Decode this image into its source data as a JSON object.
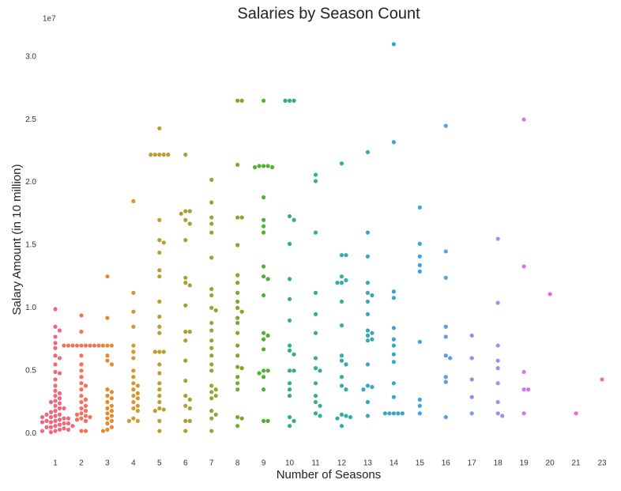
{
  "chart_data": {
    "type": "swarm",
    "title": "Salaries by Season Count",
    "x_label": "Number of Seasons",
    "y_label": "Salary Amount (in 10 million)",
    "y_offset_label": "1e7",
    "categories": [
      "1",
      "2",
      "3",
      "4",
      "5",
      "6",
      "7",
      "8",
      "9",
      "10",
      "11",
      "12",
      "13",
      "14",
      "15",
      "16",
      "17",
      "18",
      "19",
      "20",
      "21",
      "23"
    ],
    "colors": [
      "#f0677d",
      "#f3705a",
      "#e68a2f",
      "#d19a31",
      "#bb9d32",
      "#a9a031",
      "#97a431",
      "#7ca831",
      "#50b131",
      "#33b07a",
      "#35ad97",
      "#36aba8",
      "#37a8b8",
      "#38a6c6",
      "#3ba3ec",
      "#5a9de8",
      "#8295f4",
      "#a48cf4",
      "#cc7af4",
      "#f45fe0",
      "#f565cc",
      "#f66bad"
    ],
    "values": [
      [
        0.99,
        0.85,
        0.82,
        0.77,
        0.72,
        0.68,
        0.62,
        0.6,
        0.55,
        0.49,
        0.48,
        0.43,
        0.38,
        0.34,
        0.32,
        0.3,
        0.28,
        0.26,
        0.24,
        0.22,
        0.2,
        0.18,
        0.17,
        0.15,
        0.14,
        0.13,
        0.12,
        0.11,
        0.1,
        0.09,
        0.08,
        0.07,
        0.06,
        0.05,
        0.04,
        0.03,
        0.02,
        0.01,
        0.15,
        0.12,
        0.1,
        0.08,
        0.05,
        0.03,
        0.02,
        0.2,
        0.25,
        0.13,
        0.09,
        0.06
      ],
      [
        0.94,
        0.81,
        0.7,
        0.7,
        0.7,
        0.7,
        0.7,
        0.7,
        0.7,
        0.7,
        0.7,
        0.62,
        0.55,
        0.5,
        0.45,
        0.4,
        0.38,
        0.35,
        0.3,
        0.27,
        0.25,
        0.22,
        0.2,
        0.18,
        0.16,
        0.15,
        0.14,
        0.13,
        0.12,
        0.11,
        0.1,
        0.02,
        0.02
      ],
      [
        1.25,
        0.92,
        0.7,
        0.7,
        0.7,
        0.62,
        0.58,
        0.55,
        0.35,
        0.33,
        0.3,
        0.28,
        0.25,
        0.22,
        0.2,
        0.18,
        0.16,
        0.14,
        0.12,
        0.1,
        0.08,
        0.05,
        0.03,
        0.02
      ],
      [
        1.85,
        1.12,
        0.97,
        0.85,
        0.7,
        0.65,
        0.6,
        0.5,
        0.45,
        0.4,
        0.38,
        0.35,
        0.32,
        0.3,
        0.28,
        0.25,
        0.22,
        0.2,
        0.18,
        0.12,
        0.1,
        0.1
      ],
      [
        2.43,
        2.22,
        2.22,
        2.22,
        2.22,
        2.22,
        1.7,
        1.54,
        1.52,
        1.44,
        1.3,
        1.25,
        1.05,
        0.93,
        0.85,
        0.8,
        0.65,
        0.65,
        0.65,
        0.55,
        0.48,
        0.4,
        0.35,
        0.3,
        0.25,
        0.2,
        0.19,
        0.18,
        0.1,
        0.02
      ],
      [
        2.22,
        1.77,
        1.77,
        1.75,
        1.7,
        1.67,
        1.54,
        1.24,
        1.2,
        1.18,
        1.02,
        0.81,
        0.81,
        0.74,
        0.58,
        0.42,
        0.3,
        0.27,
        0.22,
        0.2,
        0.1,
        0.1,
        0.02
      ],
      [
        2.02,
        1.84,
        1.72,
        1.67,
        1.6,
        1.4,
        1.15,
        1.1,
        1.0,
        0.98,
        0.88,
        0.82,
        0.74,
        0.68,
        0.62,
        0.55,
        0.5,
        0.38,
        0.35,
        0.33,
        0.3,
        0.28,
        0.18,
        0.15,
        0.12,
        0.02
      ],
      [
        2.65,
        2.65,
        2.14,
        1.72,
        1.72,
        1.5,
        1.26,
        1.2,
        1.12,
        1.05,
        1.0,
        0.97,
        0.92,
        0.88,
        0.8,
        0.7,
        0.62,
        0.53,
        0.52,
        0.45,
        0.4,
        0.35,
        0.13,
        0.12,
        0.06
      ],
      [
        2.65,
        2.13,
        2.13,
        2.13,
        2.12,
        2.12,
        1.88,
        1.7,
        1.65,
        1.6,
        1.33,
        1.25,
        1.23,
        1.1,
        0.8,
        0.78,
        0.75,
        0.67,
        0.5,
        0.5,
        0.48,
        0.45,
        0.35,
        0.1,
        0.1
      ],
      [
        2.65,
        2.65,
        2.65,
        1.73,
        1.7,
        1.51,
        1.23,
        1.07,
        0.9,
        0.7,
        0.66,
        0.63,
        0.5,
        0.5,
        0.4,
        0.35,
        0.3,
        0.13,
        0.1,
        0.06
      ],
      [
        2.06,
        2.01,
        1.6,
        1.12,
        0.95,
        0.8,
        0.6,
        0.52,
        0.5,
        0.4,
        0.3,
        0.25,
        0.22,
        0.16,
        0.14
      ],
      [
        2.15,
        1.42,
        1.42,
        1.25,
        1.22,
        1.2,
        1.2,
        1.05,
        0.86,
        0.62,
        0.58,
        0.55,
        0.45,
        0.38,
        0.35,
        0.15,
        0.14,
        0.12,
        0.13,
        0.06
      ],
      [
        2.24,
        1.6,
        1.41,
        1.2,
        1.12,
        1.1,
        1.05,
        0.95,
        0.82,
        0.8,
        0.78,
        0.75,
        0.74,
        0.55,
        0.38,
        0.37,
        0.35,
        0.25,
        0.14
      ],
      [
        3.1,
        2.32,
        1.13,
        1.08,
        0.84,
        0.75,
        0.7,
        0.63,
        0.57,
        0.4,
        0.29,
        0.16,
        0.16,
        0.16,
        0.16,
        0.16
      ],
      [
        1.8,
        1.51,
        1.41,
        1.34,
        1.29,
        0.73,
        0.27,
        0.22,
        0.16
      ],
      [
        2.45,
        1.45,
        1.24,
        0.85,
        0.77,
        0.62,
        0.6,
        0.45,
        0.41,
        0.13
      ],
      [
        0.78,
        0.6,
        0.43,
        0.29,
        0.16
      ],
      [
        1.55,
        1.04,
        0.7,
        0.58,
        0.52,
        0.4,
        0.25,
        0.16,
        0.14
      ],
      [
        2.5,
        1.33,
        0.49,
        0.35,
        0.35,
        0.16
      ],
      [
        1.11
      ],
      [
        0.16
      ],
      [
        0.43
      ]
    ],
    "ylim": [
      -0.2,
      3.2
    ],
    "yticks": [
      {
        "value": 0,
        "label": "0.0"
      },
      0.5,
      {
        "value": 1,
        "label": "1.0"
      },
      1.5,
      {
        "value": 2,
        "label": "2.0"
      },
      2.5,
      {
        "value": 3,
        "label": "3.0"
      }
    ],
    "grid": false
  }
}
